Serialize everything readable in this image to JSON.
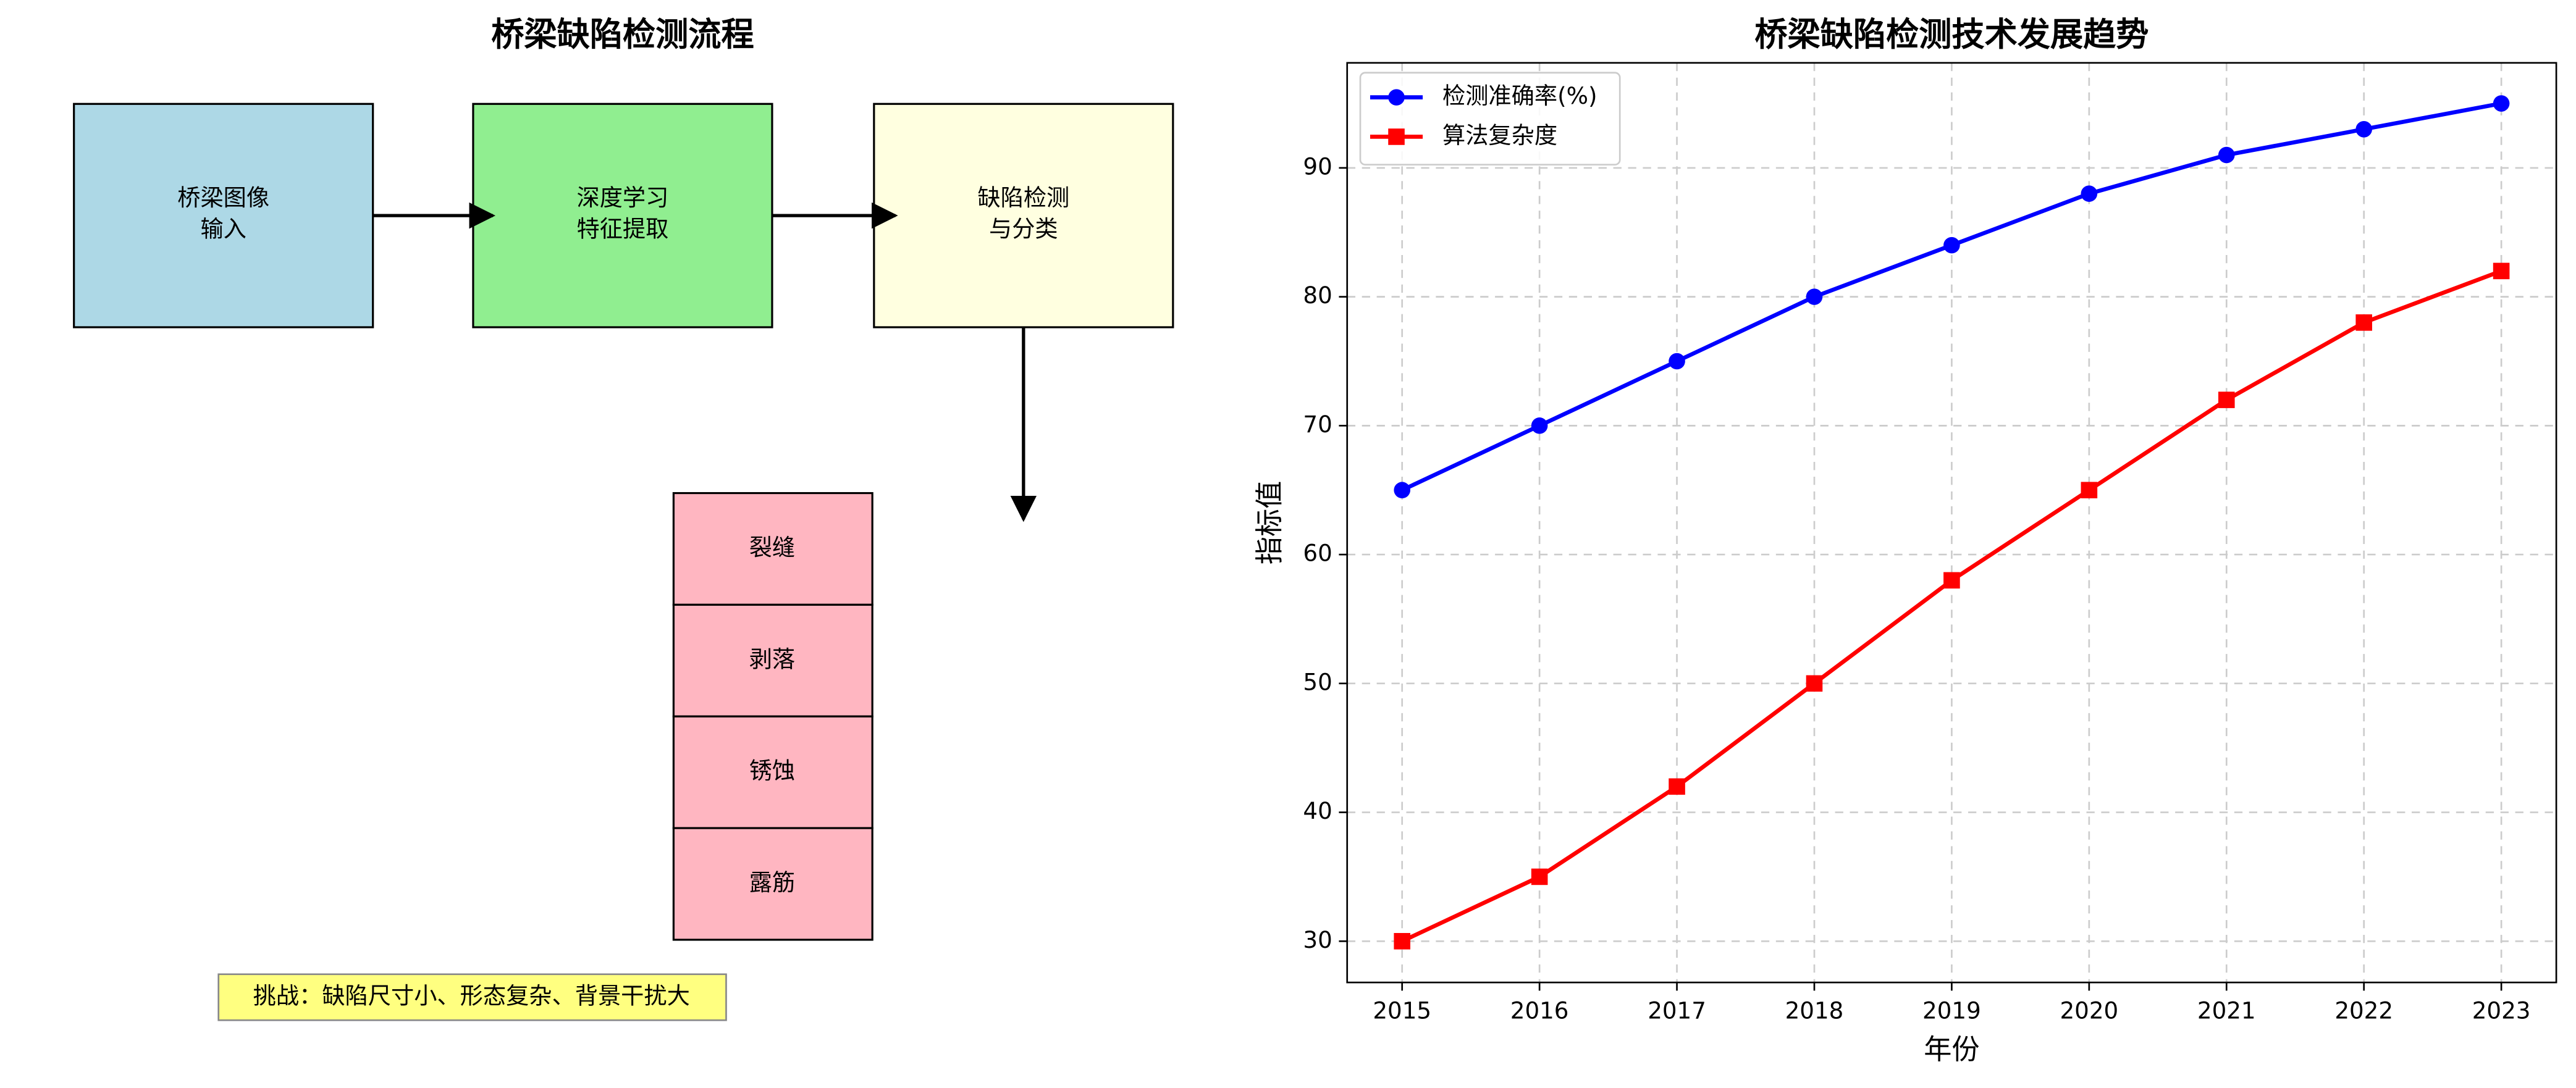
{
  "diagram": {
    "title": "桥梁缺陷检测流程",
    "nodes": [
      {
        "lines": [
          "桥梁图像",
          "输入"
        ]
      },
      {
        "lines": [
          "深度学习",
          "特征提取"
        ]
      },
      {
        "lines": [
          "缺陷检测",
          "与分类"
        ]
      }
    ],
    "defects": [
      "裂缝",
      "剥落",
      "锈蚀",
      "露筋"
    ],
    "note": "挑战：缺陷尺寸小、形态复杂、背景干扰大"
  },
  "chart_data": {
    "type": "line",
    "title": "桥梁缺陷检测技术发展趋势",
    "x_label": "年份",
    "y_label": "指标值",
    "x": [
      2015,
      2016,
      2017,
      2018,
      2019,
      2020,
      2021,
      2022,
      2023
    ],
    "series": [
      {
        "name": "检测准确率(%)",
        "color": "#0000ff",
        "marker": "circle",
        "values": [
          65,
          70,
          75,
          80,
          84,
          88,
          91,
          93,
          95
        ]
      },
      {
        "name": "算法复杂度",
        "color": "#ff0000",
        "marker": "square",
        "values": [
          30,
          35,
          42,
          50,
          58,
          65,
          72,
          78,
          82
        ]
      }
    ],
    "xlim": [
      2014.6,
      2023.4
    ],
    "xticks": [
      2015,
      2016,
      2017,
      2018,
      2019,
      2020,
      2021,
      2022,
      2023
    ],
    "ylim": [
      26.8,
      98.15
    ],
    "yticks": [
      30,
      40,
      50,
      60,
      70,
      80,
      90
    ],
    "grid": true,
    "legend": "upper-left"
  }
}
